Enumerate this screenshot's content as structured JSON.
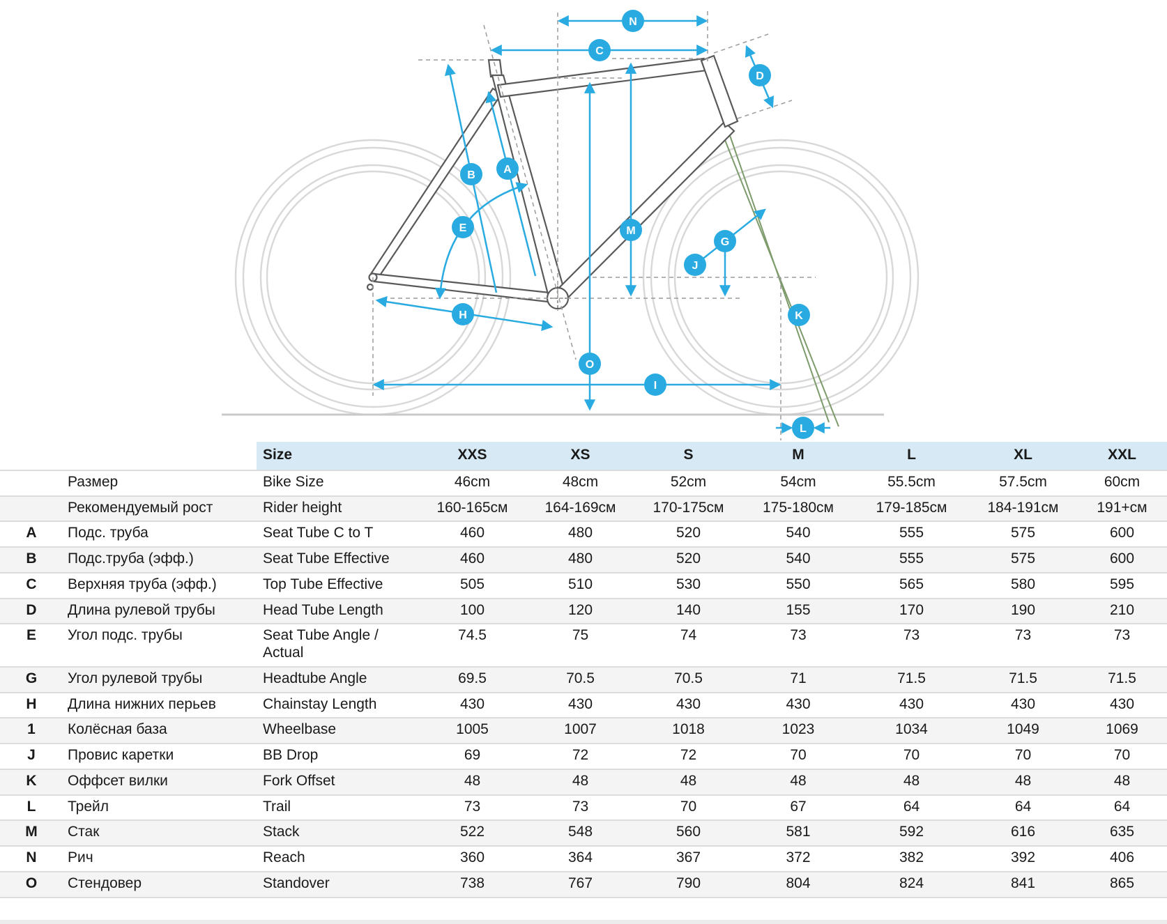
{
  "diagram": {
    "badges": [
      {
        "letter": "A"
      },
      {
        "letter": "B"
      },
      {
        "letter": "C"
      },
      {
        "letter": "D"
      },
      {
        "letter": "E"
      },
      {
        "letter": "G"
      },
      {
        "letter": "H"
      },
      {
        "letter": "I"
      },
      {
        "letter": "J"
      },
      {
        "letter": "K"
      },
      {
        "letter": "L"
      },
      {
        "letter": "M"
      },
      {
        "letter": "N"
      },
      {
        "letter": "O"
      }
    ],
    "colors": {
      "accent": "#29ABE2",
      "frame": "#58595B",
      "wheel": "#D8D8D8",
      "fork": "#7D9B6B",
      "dash": "#9B9B9B",
      "ground": "#C9C9C9"
    }
  },
  "table": {
    "size_header": "Size",
    "size_columns": [
      "XXS",
      "XS",
      "S",
      "M",
      "L",
      "XL",
      "XXL"
    ],
    "rows": [
      {
        "letter": "",
        "ru": "Размер",
        "en": "Bike Size",
        "values": [
          "46cm",
          "48cm",
          "52cm",
          "54cm",
          "55.5cm",
          "57.5cm",
          "60cm"
        ]
      },
      {
        "letter": "",
        "ru": "Рекомендуемый рост",
        "en": "Rider height",
        "values": [
          "160-165см",
          "164-169см",
          "170-175см",
          "175-180см",
          "179-185см",
          "184-191см",
          "191+см"
        ]
      },
      {
        "letter": "A",
        "ru": "Подс. труба",
        "en": "Seat Tube C to T",
        "values": [
          "460",
          "480",
          "520",
          "540",
          "555",
          "575",
          "600"
        ]
      },
      {
        "letter": "B",
        "ru": "Подс.труба (эфф.)",
        "en": "Seat Tube Effective",
        "values": [
          "460",
          "480",
          "520",
          "540",
          "555",
          "575",
          "600"
        ]
      },
      {
        "letter": "C",
        "ru": "Верхняя труба (эфф.)",
        "en": "Top Tube Effective",
        "values": [
          "505",
          "510",
          "530",
          "550",
          "565",
          "580",
          "595"
        ]
      },
      {
        "letter": "D",
        "ru": "Длина рулевой трубы",
        "en": "Head Tube Length",
        "values": [
          "100",
          "120",
          "140",
          "155",
          "170",
          "190",
          "210"
        ]
      },
      {
        "letter": "E",
        "ru": "Угол подс. трубы",
        "en": "Seat Tube Angle / Actual",
        "values": [
          "74.5",
          "75",
          "74",
          "73",
          "73",
          "73",
          "73"
        ]
      },
      {
        "letter": "G",
        "ru": "Угол рулевой трубы",
        "en": "Headtube Angle",
        "values": [
          "69.5",
          "70.5",
          "70.5",
          "71",
          "71.5",
          "71.5",
          "71.5"
        ]
      },
      {
        "letter": "H",
        "ru": "Длина нижних перьев",
        "en": "Chainstay Length",
        "values": [
          "430",
          "430",
          "430",
          "430",
          "430",
          "430",
          "430"
        ]
      },
      {
        "letter": "1",
        "ru": "Колёсная база",
        "en": "Wheelbase",
        "values": [
          "1005",
          "1007",
          "1018",
          "1023",
          "1034",
          "1049",
          "1069"
        ]
      },
      {
        "letter": "J",
        "ru": "Провис каретки",
        "en": "BB Drop",
        "values": [
          "69",
          "72",
          "72",
          "70",
          "70",
          "70",
          "70"
        ]
      },
      {
        "letter": "K",
        "ru": "Оффсет вилки",
        "en": "Fork Offset",
        "values": [
          "48",
          "48",
          "48",
          "48",
          "48",
          "48",
          "48"
        ]
      },
      {
        "letter": "L",
        "ru": "Трейл",
        "en": "Trail",
        "values": [
          "73",
          "73",
          "70",
          "67",
          "64",
          "64",
          "64"
        ]
      },
      {
        "letter": "M",
        "ru": "Стак",
        "en": "Stack",
        "values": [
          "522",
          "548",
          "560",
          "581",
          "592",
          "616",
          "635"
        ]
      },
      {
        "letter": "N",
        "ru": "Рич",
        "en": "Reach",
        "values": [
          "360",
          "364",
          "367",
          "372",
          "382",
          "392",
          "406"
        ]
      },
      {
        "letter": "O",
        "ru": "Стендовер",
        "en": "Standover",
        "values": [
          "738",
          "767",
          "790",
          "804",
          "824",
          "841",
          "865"
        ]
      }
    ]
  }
}
